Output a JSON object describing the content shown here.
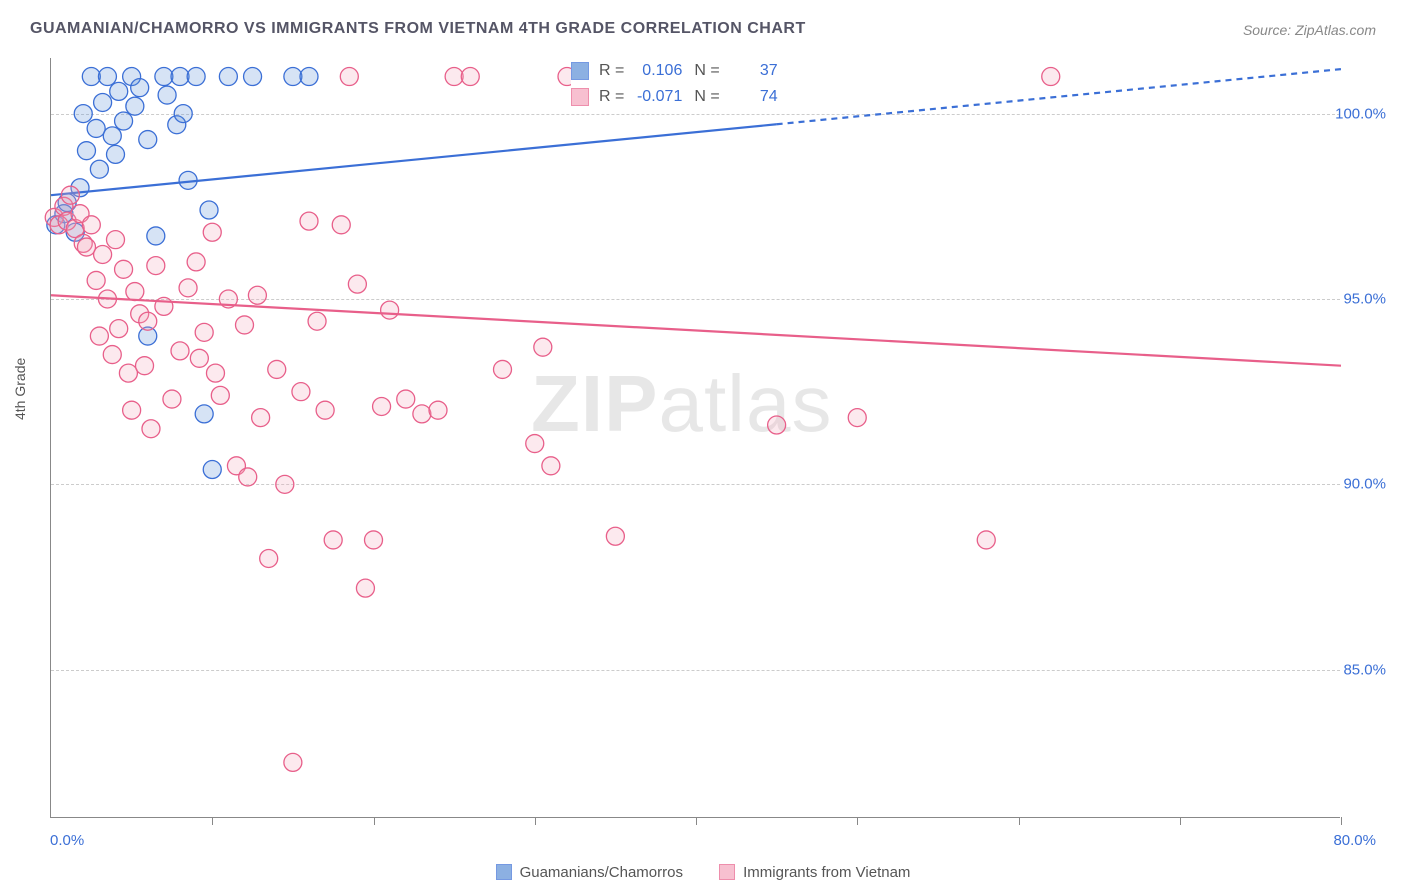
{
  "title": "GUAMANIAN/CHAMORRO VS IMMIGRANTS FROM VIETNAM 4TH GRADE CORRELATION CHART",
  "source_label": "Source: ",
  "source_value": "ZipAtlas.com",
  "ylabel": "4th Grade",
  "watermark_bold": "ZIP",
  "watermark_light": "atlas",
  "chart": {
    "type": "scatter",
    "background_color": "#ffffff",
    "grid_color": "#cccccc",
    "axis_color": "#888888",
    "tick_label_color": "#3b6fd6",
    "xlim": [
      0,
      80
    ],
    "ylim": [
      81,
      101.5
    ],
    "ytick_values": [
      85,
      90,
      95,
      100
    ],
    "ytick_labels": [
      "85.0%",
      "90.0%",
      "95.0%",
      "100.0%"
    ],
    "xtick_values": [
      0,
      10,
      20,
      30,
      40,
      50,
      60,
      70,
      80
    ],
    "xaxis_left_label": "0.0%",
    "xaxis_right_label": "80.0%",
    "marker_radius": 9,
    "marker_fill_opacity": 0.25,
    "marker_stroke_width": 1.3,
    "line_width": 2.2,
    "series": [
      {
        "key": "guam",
        "label": "Guamanians/Chamorros",
        "color": "#5c8fd6",
        "stroke": "#3b6fd6",
        "R": "0.106",
        "N": "37",
        "trend": {
          "x1": 0,
          "y1": 97.8,
          "x2": 80,
          "y2": 101.2,
          "dash_after_x": 45
        },
        "points": [
          [
            0.3,
            97.0
          ],
          [
            0.8,
            97.3
          ],
          [
            1.0,
            97.6
          ],
          [
            1.5,
            96.8
          ],
          [
            1.8,
            98.0
          ],
          [
            2.0,
            100.0
          ],
          [
            2.2,
            99.0
          ],
          [
            2.5,
            101.0
          ],
          [
            2.8,
            99.6
          ],
          [
            3.0,
            98.5
          ],
          [
            3.2,
            100.3
          ],
          [
            3.5,
            101.0
          ],
          [
            3.8,
            99.4
          ],
          [
            4.0,
            98.9
          ],
          [
            4.2,
            100.6
          ],
          [
            4.5,
            99.8
          ],
          [
            5.0,
            101.0
          ],
          [
            5.2,
            100.2
          ],
          [
            5.5,
            100.7
          ],
          [
            6.0,
            99.3
          ],
          [
            6.0,
            94.0
          ],
          [
            6.5,
            96.7
          ],
          [
            7.0,
            101.0
          ],
          [
            7.2,
            100.5
          ],
          [
            7.8,
            99.7
          ],
          [
            8.0,
            101.0
          ],
          [
            8.2,
            100.0
          ],
          [
            8.5,
            98.2
          ],
          [
            9.0,
            101.0
          ],
          [
            9.8,
            97.4
          ],
          [
            9.5,
            91.9
          ],
          [
            10.0,
            90.4
          ],
          [
            11.0,
            101.0
          ],
          [
            12.5,
            101.0
          ],
          [
            15.0,
            101.0
          ],
          [
            16.0,
            101.0
          ],
          [
            45.0,
            101.0
          ]
        ]
      },
      {
        "key": "viet",
        "label": "Immigrants from Vietnam",
        "color": "#f4a6bd",
        "stroke": "#e85f8a",
        "R": "-0.071",
        "N": "74",
        "trend": {
          "x1": 0,
          "y1": 95.1,
          "x2": 80,
          "y2": 93.2,
          "dash_after_x": null
        },
        "points": [
          [
            0.2,
            97.2
          ],
          [
            0.5,
            97.0
          ],
          [
            0.8,
            97.5
          ],
          [
            1.0,
            97.1
          ],
          [
            1.2,
            97.8
          ],
          [
            1.5,
            96.9
          ],
          [
            1.8,
            97.3
          ],
          [
            2.0,
            96.5
          ],
          [
            2.2,
            96.4
          ],
          [
            2.5,
            97.0
          ],
          [
            2.8,
            95.5
          ],
          [
            3.0,
            94.0
          ],
          [
            3.2,
            96.2
          ],
          [
            3.5,
            95.0
          ],
          [
            3.8,
            93.5
          ],
          [
            4.0,
            96.6
          ],
          [
            4.2,
            94.2
          ],
          [
            4.5,
            95.8
          ],
          [
            4.8,
            93.0
          ],
          [
            5.0,
            92.0
          ],
          [
            5.2,
            95.2
          ],
          [
            5.5,
            94.6
          ],
          [
            5.8,
            93.2
          ],
          [
            6.0,
            94.4
          ],
          [
            6.2,
            91.5
          ],
          [
            6.5,
            95.9
          ],
          [
            7.0,
            94.8
          ],
          [
            7.5,
            92.3
          ],
          [
            8.0,
            93.6
          ],
          [
            8.5,
            95.3
          ],
          [
            9.0,
            96.0
          ],
          [
            9.2,
            93.4
          ],
          [
            9.5,
            94.1
          ],
          [
            10.0,
            96.8
          ],
          [
            10.2,
            93.0
          ],
          [
            10.5,
            92.4
          ],
          [
            11.0,
            95.0
          ],
          [
            11.5,
            90.5
          ],
          [
            12.0,
            94.3
          ],
          [
            12.2,
            90.2
          ],
          [
            12.8,
            95.1
          ],
          [
            13.0,
            91.8
          ],
          [
            13.5,
            88.0
          ],
          [
            14.0,
            93.1
          ],
          [
            14.5,
            90.0
          ],
          [
            15.0,
            82.5
          ],
          [
            15.5,
            92.5
          ],
          [
            16.0,
            97.1
          ],
          [
            16.5,
            94.4
          ],
          [
            17.0,
            92.0
          ],
          [
            17.5,
            88.5
          ],
          [
            18.0,
            97.0
          ],
          [
            18.5,
            101.0
          ],
          [
            19.0,
            95.4
          ],
          [
            19.5,
            87.2
          ],
          [
            20.0,
            88.5
          ],
          [
            20.5,
            92.1
          ],
          [
            21.0,
            94.7
          ],
          [
            22.0,
            92.3
          ],
          [
            23.0,
            91.9
          ],
          [
            24.0,
            92.0
          ],
          [
            25.0,
            101.0
          ],
          [
            26.0,
            101.0
          ],
          [
            28.0,
            93.1
          ],
          [
            30.0,
            91.1
          ],
          [
            30.5,
            93.7
          ],
          [
            31.0,
            90.5
          ],
          [
            32.0,
            101.0
          ],
          [
            35.0,
            88.6
          ],
          [
            40.0,
            101.0
          ],
          [
            45.0,
            91.6
          ],
          [
            50.0,
            91.8
          ],
          [
            58.0,
            88.5
          ],
          [
            62.0,
            101.0
          ]
        ]
      }
    ],
    "stats_box": {
      "R_label": "R =",
      "N_label": "N ="
    },
    "legend_swatch_size": 16,
    "title_fontsize": 16,
    "label_fontsize": 14,
    "tick_fontsize": 15
  }
}
